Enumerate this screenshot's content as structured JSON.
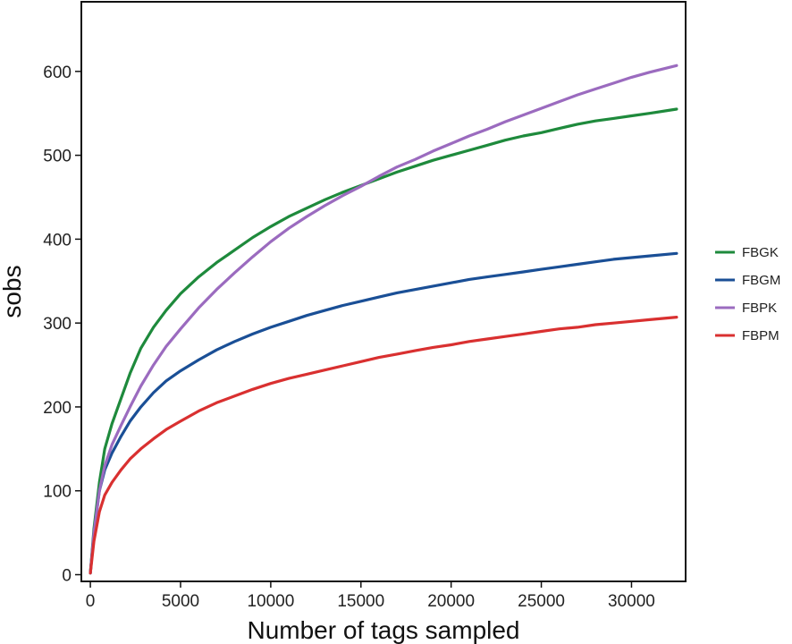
{
  "chart_data": {
    "type": "line",
    "title": "",
    "xlabel": "Number of tags sampled",
    "ylabel": "sobs",
    "xlim": [
      -500,
      33000
    ],
    "ylim": [
      -8,
      683
    ],
    "xticks": [
      0,
      5000,
      10000,
      15000,
      20000,
      25000,
      30000
    ],
    "yticks": [
      0,
      100,
      200,
      300,
      400,
      500,
      600
    ],
    "grid": false,
    "legend_position": "right",
    "series": [
      {
        "name": "FBGK",
        "color": "#1e8a3c",
        "x": [
          0,
          200,
          500,
          800,
          1200,
          1700,
          2200,
          2800,
          3500,
          4200,
          5000,
          6000,
          7000,
          8000,
          9000,
          10000,
          11000,
          12000,
          13000,
          14000,
          15000,
          16000,
          17000,
          18000,
          19000,
          20000,
          21000,
          22000,
          23000,
          24000,
          25000,
          26000,
          27000,
          28000,
          29000,
          30000,
          31000,
          32500
        ],
        "y": [
          2,
          55,
          110,
          150,
          180,
          210,
          240,
          270,
          295,
          315,
          335,
          355,
          372,
          387,
          402,
          415,
          427,
          437,
          447,
          456,
          464,
          472,
          480,
          487,
          494,
          500,
          506,
          512,
          518,
          523,
          527,
          532,
          537,
          541,
          544,
          547,
          550,
          555
        ]
      },
      {
        "name": "FBGM",
        "color": "#1a4f96",
        "x": [
          0,
          200,
          500,
          800,
          1200,
          1700,
          2200,
          2800,
          3500,
          4200,
          5000,
          6000,
          7000,
          8000,
          9000,
          10000,
          11000,
          12000,
          13000,
          14000,
          15000,
          16000,
          17000,
          18000,
          19000,
          20000,
          21000,
          22000,
          23000,
          24000,
          25000,
          26000,
          27000,
          28000,
          29000,
          30000,
          31000,
          32500
        ],
        "y": [
          2,
          50,
          100,
          125,
          145,
          165,
          183,
          200,
          217,
          231,
          243,
          256,
          268,
          278,
          287,
          295,
          302,
          309,
          315,
          321,
          326,
          331,
          336,
          340,
          344,
          348,
          352,
          355,
          358,
          361,
          364,
          367,
          370,
          373,
          376,
          378,
          380,
          383
        ]
      },
      {
        "name": "FBPK",
        "color": "#9b6bbf",
        "x": [
          0,
          200,
          500,
          800,
          1200,
          1700,
          2200,
          2800,
          3500,
          4200,
          5000,
          6000,
          7000,
          8000,
          9000,
          10000,
          11000,
          12000,
          13000,
          14000,
          15000,
          16000,
          17000,
          18000,
          19000,
          20000,
          21000,
          22000,
          23000,
          24000,
          25000,
          26000,
          27000,
          28000,
          29000,
          30000,
          31000,
          32500
        ],
        "y": [
          2,
          50,
          100,
          130,
          155,
          178,
          200,
          225,
          250,
          272,
          293,
          318,
          340,
          360,
          379,
          397,
          413,
          427,
          440,
          452,
          463,
          475,
          486,
          495,
          505,
          514,
          523,
          531,
          540,
          548,
          556,
          564,
          572,
          579,
          586,
          593,
          599,
          607
        ]
      },
      {
        "name": "FBPM",
        "color": "#d93030",
        "x": [
          0,
          200,
          500,
          800,
          1200,
          1700,
          2200,
          2800,
          3500,
          4200,
          5000,
          6000,
          7000,
          8000,
          9000,
          10000,
          11000,
          12000,
          13000,
          14000,
          15000,
          16000,
          17000,
          18000,
          19000,
          20000,
          21000,
          22000,
          23000,
          24000,
          25000,
          26000,
          27000,
          28000,
          29000,
          30000,
          31000,
          32500
        ],
        "y": [
          2,
          40,
          75,
          95,
          110,
          125,
          138,
          150,
          162,
          173,
          183,
          195,
          205,
          213,
          221,
          228,
          234,
          239,
          244,
          249,
          254,
          259,
          263,
          267,
          271,
          274,
          278,
          281,
          284,
          287,
          290,
          293,
          295,
          298,
          300,
          302,
          304,
          307
        ]
      }
    ]
  }
}
